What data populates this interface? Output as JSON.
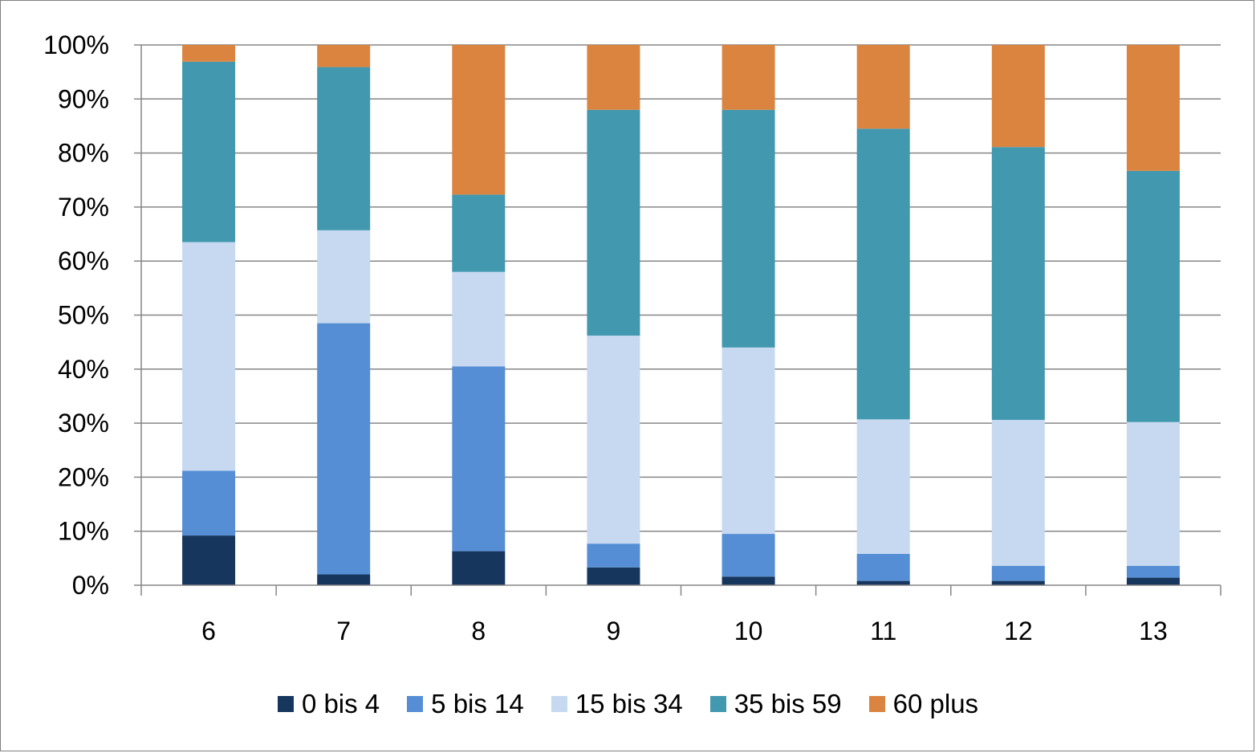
{
  "chart_data": {
    "type": "bar",
    "stacked": true,
    "normalized_percent": true,
    "title": "",
    "xlabel": "",
    "ylabel": "",
    "ylim": [
      0,
      100
    ],
    "yticks": [
      "0%",
      "10%",
      "20%",
      "30%",
      "40%",
      "50%",
      "60%",
      "70%",
      "80%",
      "90%",
      "100%"
    ],
    "categories": [
      "6",
      "7",
      "8",
      "9",
      "10",
      "11",
      "12",
      "13"
    ],
    "grid": true,
    "legend_position": "bottom",
    "series": [
      {
        "name": "0 bis 4",
        "color": "#17365d",
        "values": [
          9.2,
          2.0,
          6.3,
          3.3,
          1.6,
          0.8,
          0.8,
          1.4
        ]
      },
      {
        "name": "5 bis 14",
        "color": "#558ed5",
        "values": [
          12.0,
          46.5,
          34.2,
          4.4,
          7.9,
          5.0,
          2.8,
          2.2
        ]
      },
      {
        "name": "15 bis 34",
        "color": "#c6d9f1",
        "values": [
          42.3,
          17.2,
          17.5,
          38.5,
          34.5,
          24.9,
          27.0,
          26.6
        ]
      },
      {
        "name": "35 bis 59",
        "color": "#4198af",
        "values": [
          33.4,
          30.2,
          14.3,
          41.8,
          44.0,
          53.8,
          50.5,
          46.5
        ]
      },
      {
        "name": "60 plus",
        "color": "#da8440",
        "values": [
          3.1,
          4.1,
          27.7,
          12.0,
          12.0,
          15.5,
          18.9,
          23.3
        ]
      }
    ]
  }
}
